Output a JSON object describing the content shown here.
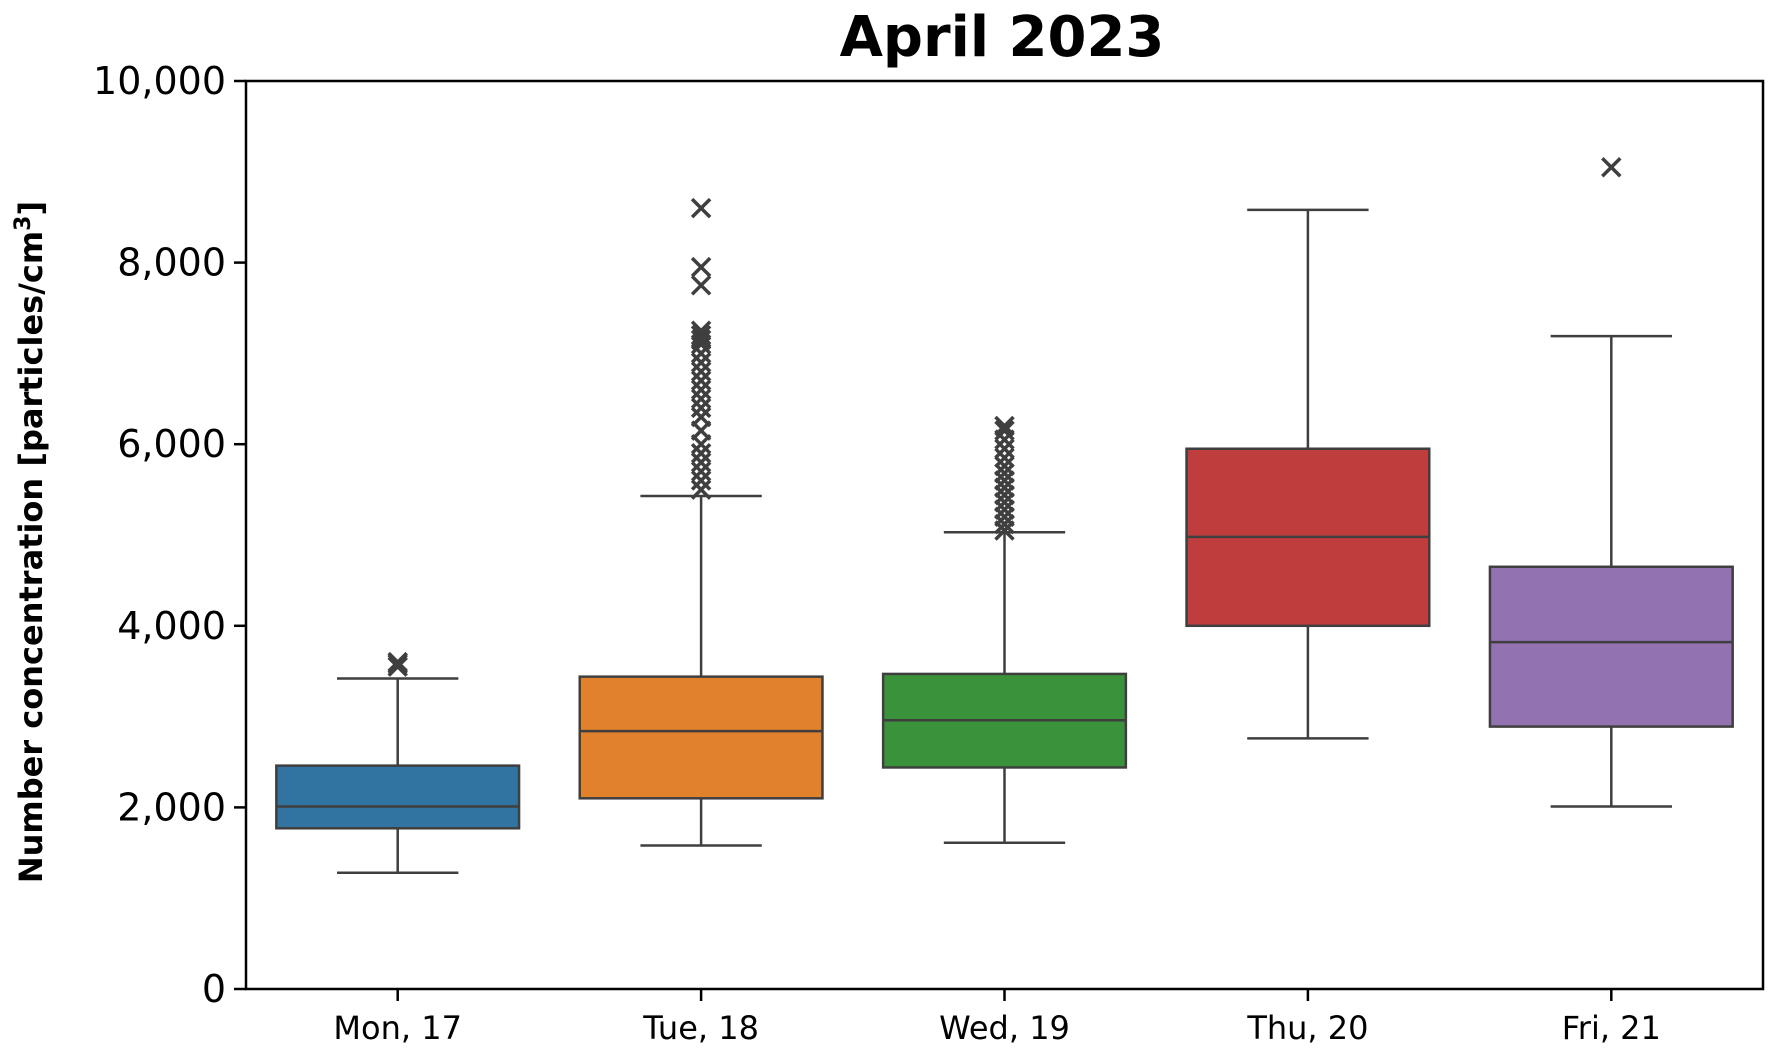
{
  "chart_data": {
    "type": "box",
    "title": "April 2023",
    "xlabel": "",
    "ylabel_main": "Number concentration [particles/cm",
    "ylabel_sup": "3",
    "ylabel_end": "]",
    "ylim": [
      0,
      10000
    ],
    "yticks": [
      0,
      2000,
      4000,
      6000,
      8000,
      10000
    ],
    "ytick_labels": [
      "0",
      "2,000",
      "4,000",
      "6,000",
      "8,000",
      "10,000"
    ],
    "categories": [
      "Mon, 17",
      "Tue, 18",
      "Wed, 19",
      "Thu, 20",
      "Fri, 21"
    ],
    "colors": [
      "#3274a1",
      "#e1812c",
      "#3a923a",
      "#c03d3e",
      "#9372b2"
    ],
    "outlier_marker": "x",
    "boxes": [
      {
        "category": "Mon, 17",
        "whisker_low": 1280,
        "q1": 1770,
        "median": 2010,
        "q3": 2460,
        "whisker_high": 3420,
        "outliers": [
          3550,
          3580,
          3600
        ]
      },
      {
        "category": "Tue, 18",
        "whisker_low": 1580,
        "q1": 2100,
        "median": 2840,
        "q3": 3440,
        "whisker_high": 5430,
        "outliers": [
          5500,
          5600,
          5700,
          5800,
          5900,
          6000,
          6150,
          6300,
          6400,
          6500,
          6600,
          6700,
          6800,
          6900,
          7000,
          7100,
          7150,
          7200,
          7250,
          7750,
          7950,
          8600
        ]
      },
      {
        "category": "Wed, 19",
        "whisker_low": 1610,
        "q1": 2440,
        "median": 2960,
        "q3": 3470,
        "whisker_high": 5030,
        "outliers": [
          5050,
          5120,
          5200,
          5280,
          5360,
          5440,
          5520,
          5600,
          5680,
          5760,
          5850,
          5950,
          6050,
          6150,
          6200
        ]
      },
      {
        "category": "Thu, 20",
        "whisker_low": 2760,
        "q1": 4000,
        "median": 4980,
        "q3": 5950,
        "whisker_high": 8580,
        "outliers": []
      },
      {
        "category": "Fri, 21",
        "whisker_low": 2010,
        "q1": 2890,
        "median": 3820,
        "q3": 4650,
        "whisker_high": 7190,
        "outliers": [
          9050
        ]
      }
    ]
  }
}
